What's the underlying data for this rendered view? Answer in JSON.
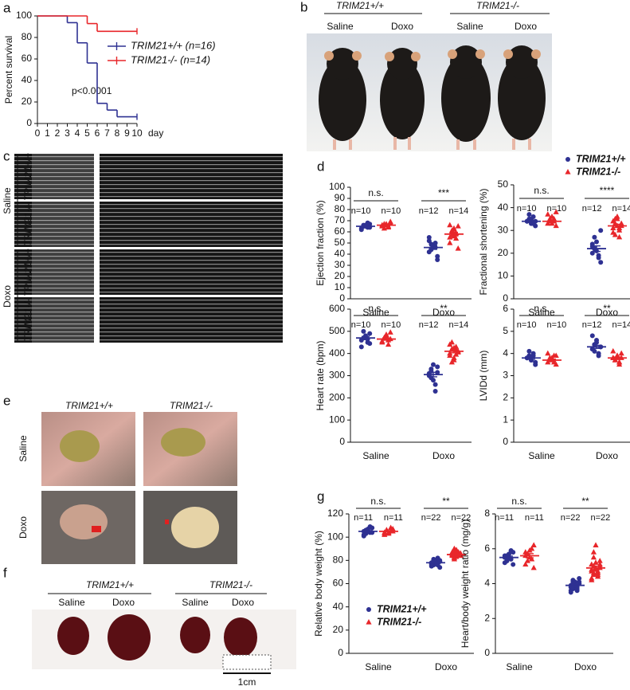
{
  "panel_labels": [
    "a",
    "b",
    "c",
    "d",
    "e",
    "f",
    "g"
  ],
  "photo_b": {
    "groups": [
      "TRIM21+/+",
      "TRIM21-/-"
    ],
    "conditions": [
      "Saline",
      "Doxo",
      "Saline",
      "Doxo"
    ]
  },
  "photo_c": {
    "conditions": [
      "Saline",
      "Doxo"
    ],
    "genotypes": [
      "TRIM21+/+",
      "TRIM21-/-",
      "TRIM21+/+",
      "TRIM21-/-"
    ]
  },
  "photo_e": {
    "genotypes": [
      "TRIM21+/+",
      "TRIM21-/-"
    ],
    "conditions": [
      "Saline",
      "Doxo"
    ]
  },
  "photo_f": {
    "groups": [
      "TRIM21+/+",
      "TRIM21-/-"
    ],
    "conditions": [
      "Saline",
      "Doxo",
      "Saline",
      "Doxo"
    ],
    "scale_bar": "1cm"
  },
  "chart_data": [
    {
      "type": "survival",
      "ylabel": "Percent survival",
      "xlabel": "day",
      "annotation": "p<0.0001",
      "xlim": [
        0,
        10
      ],
      "ylim": [
        0,
        100
      ],
      "xticks": [
        0,
        1,
        2,
        3,
        4,
        5,
        6,
        7,
        8,
        9,
        10
      ],
      "yticks": [
        0,
        20,
        40,
        60,
        80,
        100
      ],
      "legend": "upper right",
      "series": [
        {
          "name": "TRIM21+/+ (n=16)",
          "color": "#2e3192",
          "x": [
            0,
            3,
            4,
            5,
            6,
            7,
            8
          ],
          "values": [
            100,
            93.75,
            75,
            56.25,
            18.75,
            12.5,
            6.25
          ]
        },
        {
          "name": "TRIM21-/- (n=14)",
          "color": "#e8262a",
          "x": [
            0,
            5,
            6
          ],
          "values": [
            100,
            92.9,
            85.7
          ]
        }
      ]
    },
    {
      "type": "dotplot",
      "ylabel": "Ejection fraction (%)",
      "categories": [
        "Saline",
        "Doxo"
      ],
      "ylim": [
        0,
        100
      ],
      "yticks": [
        0,
        10,
        20,
        30,
        40,
        50,
        60,
        70,
        80,
        90,
        100
      ],
      "significance": [
        "n.s.",
        "***"
      ],
      "n_labels": [
        [
          "n=10",
          "n=10"
        ],
        [
          "n=12",
          "n=14"
        ]
      ],
      "series": [
        {
          "color": "#2e3192",
          "marker": "circle",
          "values": [
            [
              63,
              65,
              66,
              64,
              67,
              62,
              66,
              65,
              68,
              64
            ],
            [
              42,
              45,
              48,
              50,
              38,
              52,
              44,
              47,
              46,
              35,
              55,
              49
            ]
          ],
          "means": [
            65,
            46
          ],
          "sems": [
            0.6,
            1.7
          ]
        },
        {
          "color": "#e8262a",
          "marker": "triangle",
          "values": [
            [
              65,
              67,
              66,
              64,
              68,
              66,
              63,
              67,
              65,
              69
            ],
            [
              55,
              60,
              62,
              58,
              65,
              50,
              57,
              63,
              59,
              45,
              66,
              61,
              56,
              54
            ]
          ],
          "means": [
            66,
            58
          ],
          "sems": [
            0.6,
            1.6
          ]
        }
      ]
    },
    {
      "type": "dotplot",
      "ylabel": "Fractional shortening (%)",
      "categories": [
        "Saline",
        "Doxo"
      ],
      "ylim": [
        0,
        50
      ],
      "yticks": [
        0,
        10,
        20,
        30,
        40,
        50
      ],
      "significance": [
        "n.s.",
        "****"
      ],
      "n_labels": [
        [
          "n=10",
          "n=10"
        ],
        [
          "n=12",
          "n=14"
        ]
      ],
      "legend": "upper right",
      "series": [
        {
          "name": "TRIM21+/+",
          "color": "#2e3192",
          "marker": "circle",
          "values": [
            [
              34,
              35,
              33,
              36,
              32,
              34,
              37,
              35,
              33,
              34
            ],
            [
              20,
              22,
              25,
              18,
              16,
              23,
              27,
              21,
              19,
              30,
              24,
              22
            ]
          ],
          "means": [
            34,
            22
          ],
          "sems": [
            0.5,
            1.2
          ]
        },
        {
          "name": "TRIM21-/-",
          "color": "#e8262a",
          "marker": "triangle",
          "values": [
            [
              33,
              35,
              36,
              34,
              32,
              37,
              34,
              33,
              35,
              38
            ],
            [
              31,
              33,
              35,
              30,
              32,
              34,
              28,
              36,
              31,
              33,
              29,
              35,
              32,
              27
            ]
          ],
          "means": [
            34,
            32
          ],
          "sems": [
            0.6,
            0.7
          ]
        }
      ]
    },
    {
      "type": "dotplot",
      "ylabel": "Heart rate (bpm)",
      "categories": [
        "Saline",
        "Doxo"
      ],
      "ylim": [
        0,
        600
      ],
      "yticks": [
        0,
        100,
        200,
        300,
        400,
        500,
        600
      ],
      "significance": [
        "n.s.",
        "**"
      ],
      "n_labels": [
        [
          "n=10",
          "n=10"
        ],
        [
          "n=12",
          "n=14"
        ]
      ],
      "series": [
        {
          "color": "#2e3192",
          "marker": "circle",
          "values": [
            [
              460,
              470,
              480,
              450,
              490,
              430,
              500,
              470,
              465,
              445
            ],
            [
              300,
              320,
              280,
              260,
              340,
              310,
              290,
              350,
              230,
              315,
              305,
              330
            ]
          ],
          "means": [
            470,
            305
          ],
          "sems": [
            7,
            10
          ]
        },
        {
          "color": "#e8262a",
          "marker": "triangle",
          "values": [
            [
              455,
              470,
              480,
              460,
              495,
              450,
              470,
              485,
              440,
              465
            ],
            [
              400,
              420,
              380,
              430,
              410,
              390,
              450,
              370,
              415,
              405,
              440,
              360,
              425,
              395
            ]
          ],
          "means": [
            465,
            410
          ],
          "sems": [
            5,
            7
          ]
        }
      ]
    },
    {
      "type": "dotplot",
      "ylabel": "LVIDd (mm)",
      "categories": [
        "Saline",
        "Doxo"
      ],
      "ylim": [
        0,
        6
      ],
      "yticks": [
        0,
        1,
        2,
        3,
        4,
        5,
        6
      ],
      "significance": [
        "n.s.",
        "**"
      ],
      "n_labels": [
        [
          "n=10",
          "n=10"
        ],
        [
          "n=12",
          "n=14"
        ]
      ],
      "series": [
        {
          "color": "#2e3192",
          "marker": "circle",
          "values": [
            [
              3.8,
              3.9,
              3.7,
              4.0,
              3.6,
              3.8,
              4.1,
              3.7,
              3.9,
              3.5
            ],
            [
              4.2,
              4.4,
              4.6,
              4.0,
              4.3,
              4.8,
              4.1,
              4.5,
              3.9,
              4.3,
              4.2,
              4.4
            ]
          ],
          "means": [
            3.8,
            4.3
          ],
          "sems": [
            0.06,
            0.07
          ]
        },
        {
          "color": "#e8262a",
          "marker": "triangle",
          "values": [
            [
              3.6,
              3.8,
              3.7,
              3.9,
              3.5,
              4.0,
              3.7,
              3.8,
              3.6,
              3.9
            ],
            [
              3.8,
              3.7,
              3.9,
              3.6,
              4.0,
              3.8,
              3.7,
              3.9,
              3.6,
              3.8,
              4.1,
              3.7,
              3.8,
              3.5
            ]
          ],
          "means": [
            3.7,
            3.8
          ],
          "sems": [
            0.05,
            0.04
          ]
        }
      ]
    },
    {
      "type": "dotplot",
      "ylabel": "Relative body weight (%)",
      "categories": [
        "Saline",
        "Doxo"
      ],
      "ylim": [
        0,
        120
      ],
      "yticks": [
        0,
        20,
        40,
        60,
        80,
        100,
        120
      ],
      "significance": [
        "n.s.",
        "**"
      ],
      "n_labels": [
        [
          "n=11",
          "n=11"
        ],
        [
          "n=22",
          "n=22"
        ]
      ],
      "legend": "lower left",
      "series": [
        {
          "name": "TRIM21+/+",
          "color": "#2e3192",
          "marker": "circle",
          "values": [
            [
              105,
              103,
              107,
              104,
              108,
              102,
              106,
              105,
              109,
              104,
              101
            ],
            [
              78,
              76,
              80,
              77,
              79,
              75,
              81,
              78,
              77,
              79,
              76,
              80,
              78,
              82,
              74,
              77,
              79,
              78,
              76,
              80,
              77,
              79
            ]
          ],
          "means": [
            105,
            78
          ],
          "sems": [
            0.7,
            0.4
          ]
        },
        {
          "name": "TRIM21-/-",
          "color": "#e8262a",
          "marker": "triangle",
          "values": [
            [
              104,
              106,
              103,
              105,
              107,
              102,
              106,
              104,
              108,
              105,
              103
            ],
            [
              85,
              83,
              88,
              86,
              84,
              87,
              82,
              89,
              85,
              86,
              84,
              90,
              83,
              87,
              85,
              86,
              81,
              88,
              84,
              86,
              85,
              87
            ]
          ],
          "means": [
            105,
            85
          ],
          "sems": [
            0.5,
            0.5
          ]
        }
      ]
    },
    {
      "type": "dotplot",
      "ylabel": "Heart/body weight ratio (mg/g)",
      "categories": [
        "Saline",
        "Doxo"
      ],
      "ylim": [
        0,
        8
      ],
      "yticks": [
        0,
        2,
        4,
        6,
        8
      ],
      "significance": [
        "n.s.",
        "**"
      ],
      "n_labels": [
        [
          "n=11",
          "n=11"
        ],
        [
          "n=22",
          "n=22"
        ]
      ],
      "series": [
        {
          "color": "#2e3192",
          "marker": "circle",
          "values": [
            [
              5.5,
              5.3,
              5.7,
              5.4,
              5.8,
              5.2,
              5.6,
              5.5,
              5.9,
              5.1,
              5.6
            ],
            [
              3.9,
              3.7,
              4.1,
              3.8,
              4.0,
              3.6,
              4.2,
              3.9,
              3.8,
              4.0,
              3.5,
              4.1,
              3.9,
              3.7,
              4.3,
              3.8,
              4.0,
              3.9,
              3.6,
              4.1,
              3.8,
              4.0
            ]
          ],
          "means": [
            5.5,
            3.9
          ],
          "sems": [
            0.08,
            0.05
          ]
        },
        {
          "color": "#e8262a",
          "marker": "triangle",
          "values": [
            [
              5.6,
              5.3,
              5.9,
              5.4,
              6.2,
              5.1,
              5.7,
              5.5,
              6.0,
              4.9,
              5.8
            ],
            [
              4.8,
              4.5,
              5.2,
              4.7,
              5.0,
              4.3,
              5.5,
              4.9,
              4.6,
              5.1,
              4.2,
              5.8,
              4.8,
              4.4,
              5.3,
              4.7,
              5.0,
              6.2,
              4.5,
              4.9,
              5.1,
              4.6
            ]
          ],
          "means": [
            5.6,
            4.9
          ],
          "sems": [
            0.12,
            0.1
          ]
        }
      ]
    }
  ]
}
